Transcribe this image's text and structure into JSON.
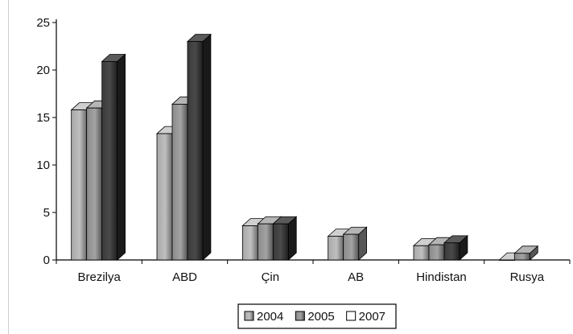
{
  "chart_data": {
    "type": "bar",
    "style": "3d-clustered",
    "categories": [
      "Brezilya",
      "ABD",
      "Çin",
      "AB",
      "Hindistan",
      "Rusya"
    ],
    "series": [
      {
        "name": "2004",
        "values": [
          15.8,
          13.3,
          3.6,
          2.5,
          1.5,
          0
        ],
        "color": "#8a8a8a"
      },
      {
        "name": "2005",
        "values": [
          16.0,
          16.4,
          3.8,
          2.7,
          1.6,
          0.7
        ],
        "color": "#6e6e6e"
      },
      {
        "name": "2007",
        "values": [
          20.9,
          23.0,
          3.8,
          null,
          1.8,
          null
        ],
        "color": "#2c2c2c"
      }
    ],
    "yticks": [
      "0",
      "5",
      "10",
      "15",
      "20",
      "25"
    ],
    "ylim": [
      0,
      25
    ],
    "grid": false,
    "legend": {
      "position": "bottom-center"
    }
  }
}
